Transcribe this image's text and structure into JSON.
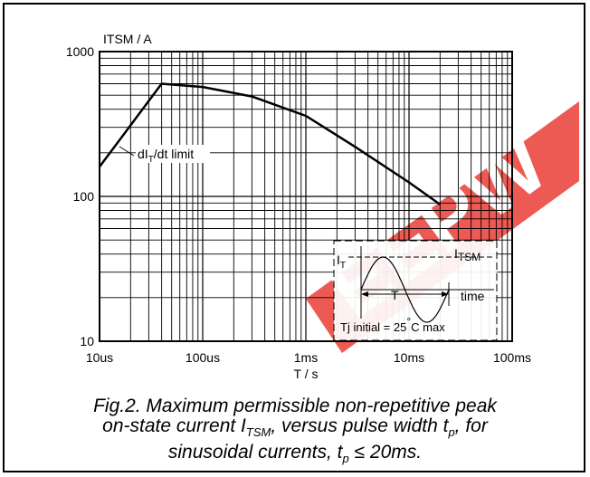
{
  "chart_data": {
    "type": "line",
    "xscale": "log",
    "yscale": "log",
    "xlim": [
      1e-05,
      0.1
    ],
    "ylim": [
      10,
      1000
    ],
    "x_ticks": [
      "10us",
      "100us",
      "1ms",
      "10ms",
      "100ms"
    ],
    "y_ticks": [
      "10",
      "100",
      "1000"
    ],
    "ylabel": "ITSM / A",
    "xlabel": "T / s",
    "grid": true,
    "series": [
      {
        "x": [
          1e-05,
          4e-05,
          0.0001,
          0.0003,
          0.001,
          0.003,
          0.01,
          0.02
        ],
        "values": [
          160,
          600,
          570,
          490,
          360,
          220,
          125,
          88
        ]
      }
    ],
    "annotations": {
      "limit_label": "dI",
      "limit_label_sub": "T",
      "limit_label_rest": "/dt limit"
    }
  },
  "inset": {
    "it_label": "I",
    "it_sub": "T",
    "itsm_label": "I",
    "itsm_sub": "TSM",
    "t_label": "T",
    "time_label": "time",
    "tj_label": "Tj initial = 25",
    "tj_deg": "°",
    "tj_rest": "C max"
  },
  "watermark": "EEPW",
  "caption": {
    "line1": "Fig.2.   Maximum permissible non-repetitive peak",
    "line2a": "on-state current I",
    "line2sub": "TSM",
    "line2b": ", versus pulse width t",
    "line2sub2": "p",
    "line2c": ", for",
    "line3a": "sinusoidal currents, t",
    "line3sub": "p",
    "line3b": " ≤ 20ms."
  }
}
